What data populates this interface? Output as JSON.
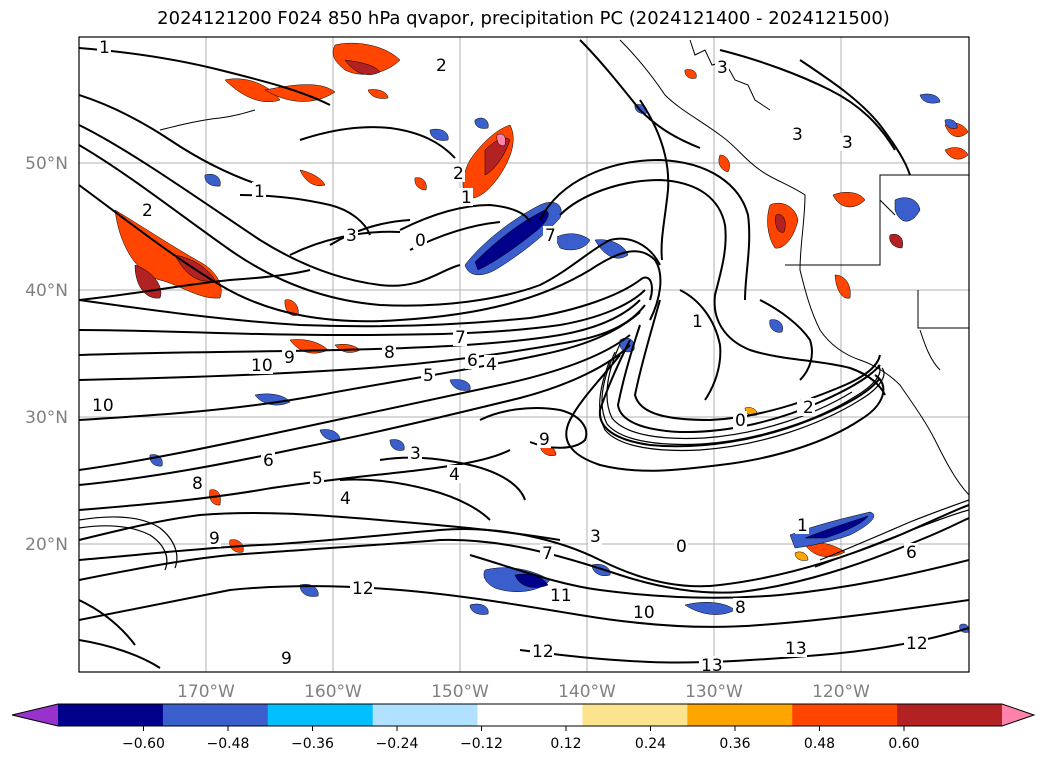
{
  "title": "2024121200 F024 850 hPa qvapor, precipitation PC (2024121400 - 2024121500)",
  "lat_labels": [
    "50°N",
    "40°N",
    "30°N",
    "20°N"
  ],
  "lon_labels": [
    "170°W",
    "160°W",
    "150°W",
    "140°W",
    "130°W",
    "120°W"
  ],
  "colorbar": {
    "colors": [
      "#9932cc",
      "#00008b",
      "#3a5fcd",
      "#00bfff",
      "#b0e2ff",
      "#ffffff",
      "#fce48f",
      "#ffa500",
      "#ff4500",
      "#b22222",
      "#ff82ab"
    ],
    "tick_labels": [
      "−0.60",
      "−0.48",
      "−0.36",
      "−0.24",
      "−0.12",
      "0.12",
      "0.24",
      "0.36",
      "0.48",
      "0.60"
    ]
  },
  "contour_labels": [
    "1",
    "2",
    "3",
    "1",
    "2",
    "3",
    "3",
    "1",
    "2",
    "1",
    "3",
    "0",
    "7",
    "10",
    "9",
    "8",
    "7",
    "6",
    "4",
    "5",
    "10",
    "1",
    "0",
    "9",
    "3",
    "4",
    "5",
    "6",
    "8",
    "7",
    "4",
    "12",
    "9",
    "11",
    "10",
    "12",
    "13",
    "13",
    "12",
    "1",
    "0",
    "8",
    "3",
    "9",
    "2",
    "6"
  ],
  "chart_data": {
    "type": "map",
    "title": "2024121200 F024 850 hPa qvapor, precipitation PC (2024121400 - 2024121500)",
    "projection": "PlateCarree",
    "lon_ticks": [
      -170,
      -160,
      -150,
      -140,
      -130,
      -120
    ],
    "lat_ticks": [
      20,
      30,
      40,
      50
    ],
    "extent": [
      -180,
      -110,
      10,
      60
    ],
    "grid": true,
    "colorbar_levels": [
      -0.6,
      -0.48,
      -0.36,
      -0.24,
      -0.12,
      0.12,
      0.24,
      0.36,
      0.48,
      0.6
    ]
  }
}
